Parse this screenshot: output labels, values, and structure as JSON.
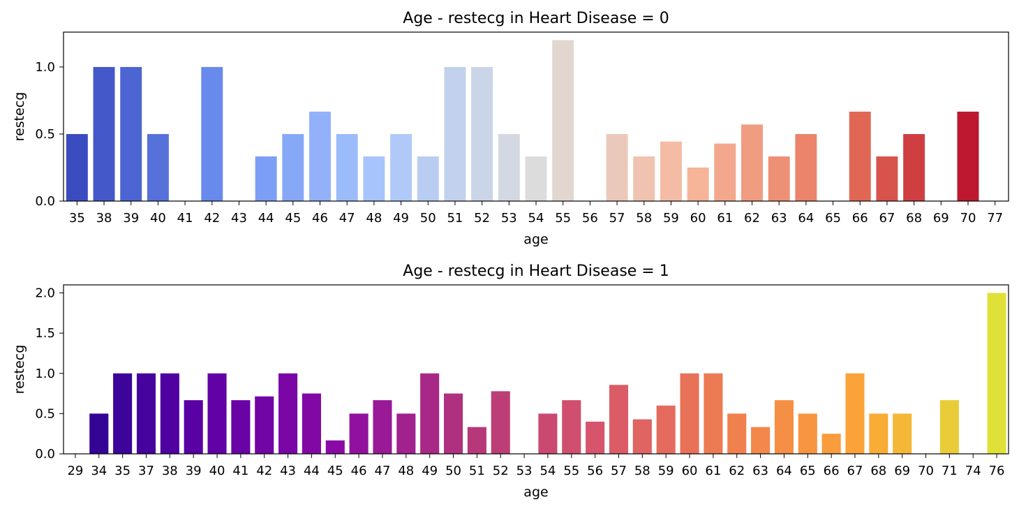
{
  "chart_data": [
    {
      "type": "bar",
      "title": "Age - restecg in Heart Disease = 0",
      "xlabel": "age",
      "ylabel": "restecg",
      "ylim": [
        0,
        1.26
      ],
      "yticks": [
        "0.0",
        "0.5",
        "1.0"
      ],
      "categories": [
        "35",
        "38",
        "39",
        "40",
        "41",
        "42",
        "43",
        "44",
        "45",
        "46",
        "47",
        "48",
        "49",
        "50",
        "51",
        "52",
        "53",
        "54",
        "55",
        "56",
        "57",
        "58",
        "59",
        "60",
        "61",
        "62",
        "63",
        "64",
        "65",
        "66",
        "67",
        "68",
        "69",
        "70",
        "77"
      ],
      "values": [
        0.5,
        1.0,
        1.0,
        0.5,
        0,
        1.0,
        0,
        0.333,
        0.5,
        0.667,
        0.5,
        0.333,
        0.5,
        0.333,
        1.0,
        1.0,
        0.5,
        0.333,
        1.2,
        0,
        0.5,
        0.333,
        0.444,
        0.25,
        0.429,
        0.571,
        0.333,
        0.5,
        0,
        0.667,
        0.333,
        0.5,
        0,
        0.667,
        0
      ],
      "palette": "coolwarm",
      "grid": false,
      "legend": "none"
    },
    {
      "type": "bar",
      "title": "Age - restecg in Heart Disease = 1",
      "xlabel": "age",
      "ylabel": "restecg",
      "ylim": [
        0,
        2.1
      ],
      "yticks": [
        "0.0",
        "0.5",
        "1.0",
        "1.5",
        "2.0"
      ],
      "categories": [
        "29",
        "34",
        "35",
        "37",
        "38",
        "39",
        "40",
        "41",
        "42",
        "43",
        "44",
        "45",
        "46",
        "47",
        "48",
        "49",
        "50",
        "51",
        "52",
        "53",
        "54",
        "55",
        "56",
        "57",
        "58",
        "59",
        "60",
        "61",
        "62",
        "63",
        "64",
        "65",
        "66",
        "67",
        "68",
        "69",
        "70",
        "71",
        "74",
        "76"
      ],
      "values": [
        0,
        0.5,
        1.0,
        1.0,
        1.0,
        0.667,
        1.0,
        0.667,
        0.714,
        1.0,
        0.75,
        0.167,
        0.5,
        0.667,
        0.5,
        1.0,
        0.75,
        0.333,
        0.778,
        0,
        0.5,
        0.667,
        0.4,
        0.857,
        0.429,
        0.6,
        1.0,
        1.0,
        0.5,
        0.333,
        0.667,
        0.5,
        0.25,
        1.0,
        0.5,
        0.5,
        0,
        0.667,
        0,
        2.0
      ],
      "palette": "plasma",
      "grid": false,
      "legend": "none"
    }
  ],
  "palettes": {
    "coolwarm": [
      "#3b4cc0",
      "#6f92f3",
      "#aac7fd",
      "#dddcdc",
      "#f7b89c",
      "#e7745b",
      "#b40426"
    ],
    "plasma": [
      "#2a0593",
      "#5e01a6",
      "#8b0aa5",
      "#b5367a",
      "#d8576b",
      "#f0804f",
      "#fca636",
      "#dfe138"
    ]
  }
}
